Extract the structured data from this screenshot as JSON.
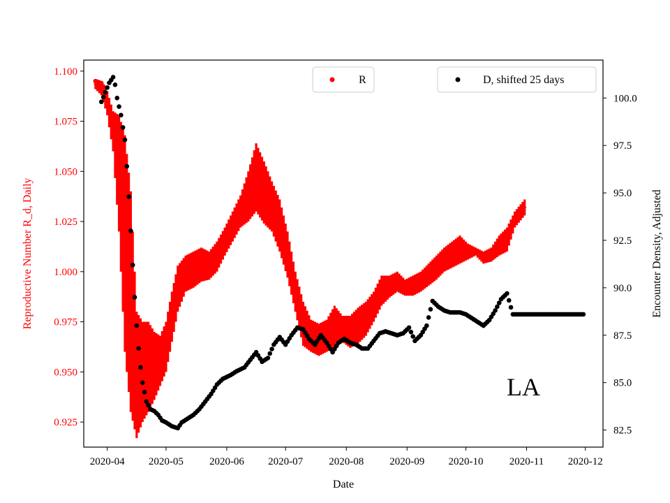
{
  "chart_data": {
    "type": "scatter",
    "xlabel": "Date",
    "ylabel_left": "Reproductive Number R_d, Daily",
    "ylabel_right": "Encounter Density, Adjusted",
    "annotation": "LA",
    "x_ticks": [
      "2020-04",
      "2020-05",
      "2020-06",
      "2020-07",
      "2020-08",
      "2020-09",
      "2020-10",
      "2020-11",
      "2020-12"
    ],
    "x_tick_days": [
      0,
      30,
      61,
      91,
      122,
      153,
      183,
      214,
      244
    ],
    "xlim_days": [
      -12,
      253
    ],
    "ylim_left": [
      0.9125,
      1.1055
    ],
    "ylim_right": [
      81.6,
      102.0
    ],
    "yticks_left": [
      0.925,
      0.95,
      0.975,
      1.0,
      1.025,
      1.05,
      1.075,
      1.1
    ],
    "ytick_labels_left": [
      "0.925",
      "0.950",
      "0.975",
      "1.000",
      "1.025",
      "1.050",
      "1.075",
      "1.100"
    ],
    "yticks_right": [
      82.5,
      85.0,
      87.5,
      90.0,
      92.5,
      95.0,
      97.5,
      100.0
    ],
    "ytick_labels_right": [
      "82.5",
      "85.0",
      "87.5",
      "90.0",
      "92.5",
      "95.0",
      "97.5",
      "100.0"
    ],
    "colors": {
      "R": "#ff0000",
      "D": "#000000",
      "left_axis": "#ff0000"
    },
    "legend": {
      "r_label": "R",
      "d_label": "D, shifted 25 days"
    },
    "series": [
      {
        "name": "R",
        "color": "#ff0000",
        "note": "daily estimate with error range; day offset from 2020-04-01",
        "x": [
          -6,
          -3,
          0,
          3,
          6,
          9,
          12,
          15,
          18,
          21,
          24,
          27,
          30,
          33,
          36,
          40,
          44,
          48,
          52,
          56,
          60,
          64,
          68,
          72,
          76,
          80,
          84,
          88,
          92,
          96,
          100,
          104,
          108,
          112,
          116,
          120,
          124,
          128,
          132,
          136,
          140,
          144,
          148,
          152,
          156,
          160,
          164,
          168,
          172,
          176,
          180,
          184,
          188,
          192,
          196,
          200,
          204,
          208,
          213
        ],
        "low": [
          1.091,
          1.088,
          1.078,
          1.06,
          1.02,
          0.96,
          0.93,
          0.917,
          0.925,
          0.93,
          0.936,
          0.943,
          0.95,
          0.965,
          0.98,
          0.99,
          0.992,
          0.995,
          0.996,
          1.0,
          1.008,
          1.015,
          1.022,
          1.025,
          1.03,
          1.024,
          1.02,
          1.01,
          0.997,
          0.98,
          0.963,
          0.96,
          0.958,
          0.96,
          0.962,
          0.965,
          0.962,
          0.964,
          0.968,
          0.975,
          0.983,
          0.987,
          0.99,
          0.988,
          0.988,
          0.99,
          0.993,
          0.996,
          1.0,
          1.002,
          1.004,
          1.006,
          1.008,
          1.004,
          1.005,
          1.008,
          1.01,
          1.022,
          1.028
        ],
        "high": [
          1.096,
          1.095,
          1.09,
          1.08,
          1.078,
          1.068,
          1.04,
          0.98,
          0.975,
          0.975,
          0.97,
          0.968,
          0.975,
          0.99,
          1.003,
          1.008,
          1.01,
          1.012,
          1.01,
          1.015,
          1.022,
          1.03,
          1.038,
          1.05,
          1.064,
          1.055,
          1.045,
          1.036,
          1.02,
          1.0,
          0.985,
          0.976,
          0.974,
          0.976,
          0.983,
          0.978,
          0.978,
          0.982,
          0.985,
          0.99,
          0.998,
          0.998,
          1.0,
          0.996,
          0.998,
          1.0,
          1.004,
          1.008,
          1.012,
          1.015,
          1.018,
          1.014,
          1.012,
          1.01,
          1.012,
          1.018,
          1.022,
          1.03,
          1.036
        ]
      },
      {
        "name": "D, shifted 25 days",
        "color": "#000000",
        "x": [
          -3,
          -1,
          1,
          3,
          4,
          5,
          7,
          9,
          10,
          11,
          12,
          13,
          14,
          15,
          16,
          17,
          18,
          19,
          20,
          21,
          22,
          24,
          26,
          28,
          30,
          33,
          36,
          38,
          41,
          44,
          47,
          50,
          53,
          56,
          59,
          61,
          63,
          66,
          70,
          73,
          76,
          79,
          82,
          85,
          88,
          91,
          94,
          97,
          100,
          103,
          106,
          109,
          112,
          115,
          118,
          121,
          124,
          127,
          130,
          133,
          136,
          139,
          142,
          145,
          148,
          151,
          154,
          157,
          160,
          163,
          166,
          169,
          172,
          175,
          177,
          180,
          183,
          186,
          189,
          192,
          195,
          198,
          201,
          204,
          207,
          210,
          213,
          216,
          220,
          224,
          228,
          232,
          236,
          240,
          243
        ],
        "y": [
          99.8,
          100.3,
          100.8,
          101.1,
          100.7,
          100.0,
          99.1,
          97.8,
          96.4,
          94.8,
          93.0,
          91.2,
          89.5,
          88.0,
          86.8,
          85.8,
          85.0,
          84.5,
          84.0,
          83.8,
          83.6,
          83.5,
          83.3,
          83.0,
          82.9,
          82.7,
          82.6,
          82.9,
          83.1,
          83.3,
          83.6,
          84.0,
          84.4,
          84.9,
          85.2,
          85.3,
          85.4,
          85.6,
          85.8,
          86.2,
          86.6,
          86.1,
          86.3,
          87.0,
          87.4,
          87.0,
          87.5,
          87.9,
          87.8,
          87.3,
          87.0,
          87.5,
          87.1,
          86.6,
          87.1,
          87.3,
          87.1,
          87.0,
          86.8,
          86.8,
          87.2,
          87.6,
          87.7,
          87.6,
          87.5,
          87.6,
          87.9,
          87.2,
          87.5,
          88.0,
          89.3,
          89.0,
          88.8,
          88.7,
          88.7,
          88.7,
          88.6,
          88.4,
          88.2,
          88.0,
          88.3,
          88.8,
          89.4,
          89.7,
          88.6,
          88.6,
          88.6,
          88.6,
          88.6,
          88.6,
          88.6,
          88.6,
          88.6,
          88.6,
          88.6
        ]
      }
    ]
  }
}
